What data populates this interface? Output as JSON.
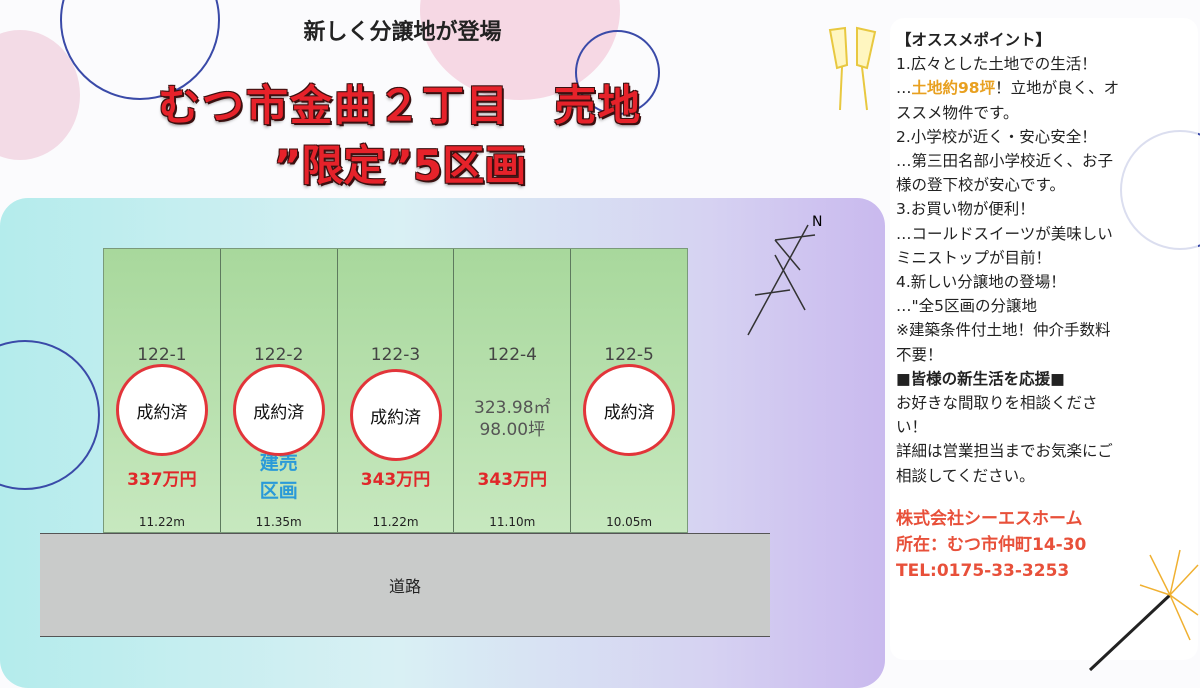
{
  "header": {
    "subtitle": "新しく分譲地が登場",
    "title": "むつ市金曲２丁目　売地",
    "title2": "”限定”5区画"
  },
  "lots": [
    {
      "number": "122-1",
      "area_m2": "",
      "area_tsubo": "",
      "price": "337万円",
      "frontage": "11.22m",
      "stamp": "成約済"
    },
    {
      "number": "122-2",
      "area_m2": "",
      "area_tsubo": "",
      "note": "建売区画",
      "frontage": "11.35m",
      "stamp": "成約済"
    },
    {
      "number": "122-3",
      "area_m2": "",
      "area_tsubo": "",
      "price": "343万円",
      "frontage": "11.22m",
      "stamp": "成約済"
    },
    {
      "number": "122-4",
      "area_m2": "323.98㎡",
      "area_tsubo": "98.00坪",
      "price": "343万円",
      "frontage": "11.10m"
    },
    {
      "number": "122-5",
      "area_m2": "",
      "area_tsubo": "",
      "frontage": "10.05m",
      "stamp": "成約済"
    }
  ],
  "road": "道路",
  "compass": "N",
  "points": {
    "heading": "【オススメポイント】",
    "p1": "1.広々とした土地での生活！",
    "p1a_pre": "…",
    "p1a_hl": "土地約98坪",
    "p1a_post": "！立地が良く、オ",
    "p1b": "ススメ物件です。",
    "p2": "2.小学校が近く・安心安全！",
    "p2a": "…第三田名部小学校近く、お子",
    "p2b": "様の登下校が安心です。",
    "p3": "3.お買い物が便利！",
    "p3a": "…コールドスイーツが美味しい",
    "p3b": "ミニストップが目前！",
    "p4": "4.新しい分譲地の登場！",
    "p4a": "…\"全5区画の分譲地",
    "cond1": "※建築条件付土地！仲介手数料",
    "cond2": "不要！",
    "support": "■皆様の新生活を応援■",
    "s1": "お好きな間取りを相談くださ",
    "s2": "い！",
    "s3": "詳細は営業担当までお気楽にご",
    "s4": "相談してください。"
  },
  "company": {
    "name": "株式会社シーエスホーム",
    "address": "所在：むつ市仲町14-30",
    "tel": "TEL:0175-33-3253"
  },
  "colors": {
    "title_red": "#e6222a",
    "price_red": "#e0282a",
    "built_blue": "#2a9ad8",
    "highlight": "#e8a020",
    "company": "#e8503a"
  }
}
